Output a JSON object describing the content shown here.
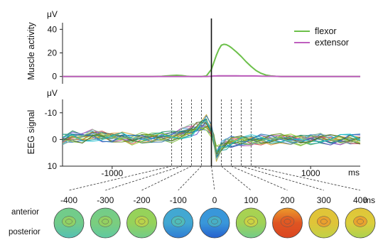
{
  "chart_data": [
    {
      "type": "line",
      "panel": "muscle",
      "ylabel": "Muscle activity",
      "unit": "μV",
      "x_unit": "ms",
      "xlim": [
        -1500,
        1500
      ],
      "ylim": [
        -5,
        42
      ],
      "yticks": [
        40,
        20,
        0
      ],
      "x": [
        -1500,
        -1200,
        -1000,
        -800,
        -600,
        -500,
        -450,
        -400,
        -350,
        -300,
        -250,
        -200,
        -150,
        -100,
        -50,
        0,
        25,
        50,
        75,
        100,
        125,
        150,
        175,
        200,
        250,
        300,
        350,
        400,
        450,
        500,
        550,
        600,
        650,
        700,
        800,
        1000,
        1200,
        1500
      ],
      "series": [
        {
          "name": "flexor",
          "color": "#6cc04a",
          "values": [
            0,
            0,
            0,
            0,
            0,
            0.2,
            0.5,
            0.8,
            1.0,
            0.8,
            0.3,
            0,
            0,
            0,
            0.5,
            6,
            12,
            18,
            23,
            26.5,
            27.3,
            27,
            26,
            24.5,
            21,
            17,
            12.5,
            8.5,
            5,
            2.7,
            1.2,
            0.5,
            0.2,
            0,
            0,
            0,
            0,
            0
          ]
        },
        {
          "name": "extensor",
          "color": "#bf5fbf",
          "values": [
            0,
            0,
            0,
            0,
            0,
            0,
            0,
            0,
            0,
            0,
            0,
            0,
            0,
            0,
            0,
            0.2,
            0.4,
            0.5,
            0.6,
            0.6,
            0.6,
            0.6,
            0.6,
            0.6,
            0.6,
            0.5,
            0.5,
            0.5,
            0.4,
            0.3,
            0.2,
            0.2,
            0.1,
            0,
            0,
            0,
            0,
            0
          ]
        }
      ]
    },
    {
      "type": "line",
      "panel": "eeg",
      "ylabel": "EEG signal",
      "unit": "μV",
      "x_unit": "ms",
      "inverted_y": true,
      "xlim": [
        -1500,
        1500
      ],
      "ylim": [
        -15,
        10
      ],
      "yticks": [
        -10,
        0,
        10
      ],
      "xticks": [
        -1000,
        1000
      ],
      "x": [
        -1500,
        -1400,
        -1300,
        -1200,
        -1100,
        -1000,
        -900,
        -800,
        -700,
        -600,
        -500,
        -400,
        -300,
        -200,
        -150,
        -100,
        -50,
        0,
        25,
        50,
        75,
        100,
        150,
        200,
        300,
        400,
        500,
        600,
        700,
        800,
        900,
        1000,
        1100,
        1200,
        1300,
        1400,
        1500
      ],
      "mean_values": [
        0,
        -1,
        -0.5,
        -1.5,
        -1,
        -0.5,
        -1,
        0,
        -0.5,
        -0.5,
        -1,
        -1,
        -2,
        -3,
        -4,
        -5,
        -6,
        -3,
        0,
        5,
        4,
        2.5,
        1.5,
        1,
        0.5,
        0.3,
        0,
        0,
        -0.3,
        0,
        0.3,
        0,
        -0.3,
        0.2,
        0,
        -0.3,
        0
      ],
      "trace_colors": [
        "#2a6fc9",
        "#3aa0d8",
        "#1e8a5a",
        "#5cb85c",
        "#8ac43f",
        "#c9a22a",
        "#e0902a",
        "#d9534f",
        "#b04fb0",
        "#6a5acd",
        "#20a0a0",
        "#7fbf3f",
        "#4682b4",
        "#2e8b57",
        "#9acd32",
        "#6b8e23",
        "#1f77b4",
        "#17becf",
        "#556b2f",
        "#8fbc8f"
      ]
    },
    {
      "type": "heatmap",
      "panel": "topography",
      "time_labels": [
        "-400",
        "-300",
        "-200",
        "-100",
        "0",
        "100",
        "200",
        "300",
        "400"
      ],
      "time_unit": "ms",
      "row_labels": [
        "anterior",
        "posterior"
      ],
      "maps": [
        {
          "t": -400,
          "anterior_level": 0.4,
          "posterior_level": 0.3
        },
        {
          "t": -300,
          "anterior_level": 0.4,
          "posterior_level": 0.35
        },
        {
          "t": -200,
          "anterior_level": 0.5,
          "posterior_level": 0.4
        },
        {
          "t": -100,
          "anterior_level": 0.2,
          "posterior_level": 0.1
        },
        {
          "t": 0,
          "anterior_level": 0.15,
          "posterior_level": 0.05
        },
        {
          "t": 100,
          "anterior_level": 0.55,
          "posterior_level": 0.4
        },
        {
          "t": 200,
          "anterior_level": 0.8,
          "posterior_level": 0.95
        },
        {
          "t": 300,
          "anterior_level": 0.7,
          "posterior_level": 0.6
        },
        {
          "t": 400,
          "anterior_level": 0.7,
          "posterior_level": 0.55
        }
      ]
    }
  ]
}
